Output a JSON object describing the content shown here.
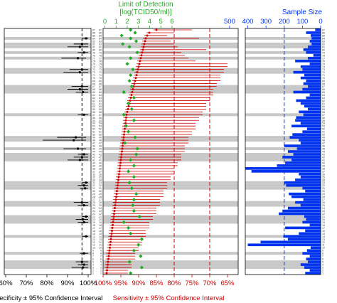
{
  "colors": {
    "sensitivity": "#cc0000",
    "lod": "#22aa22",
    "sample_size": "#0033ee",
    "stripe": "#c8c8c8",
    "frame": "#000000"
  },
  "left_panel": {
    "xlabel": "Specificity ± 95% Confidence Interval",
    "ticks": [
      "60%",
      "70%",
      "80%",
      "90%",
      "100%"
    ]
  },
  "middle_panel": {
    "xlabel": "Sensitivity ± 95% Confidence Interval",
    "ticks": [
      "100%",
      "95%",
      "90%",
      "85%",
      "80%",
      "75%",
      "70%",
      "65%"
    ],
    "top_title_line1": "Limit of Detection",
    "top_title_line2": "[log(TCID50/ml)]",
    "top_ticks": [
      "0",
      "1",
      "2",
      "3",
      "4",
      "5",
      "6"
    ]
  },
  "right_panel": {
    "title": "Sample Size",
    "ticks": [
      "500",
      "400",
      "300",
      "200",
      "100",
      "0"
    ]
  },
  "chart_data": [
    {
      "type": "scatter",
      "panel": "specificity",
      "xlabel": "Specificity ± 95% Confidence Interval",
      "xlim": [
        60,
        100
      ],
      "reference_line": 97,
      "rows": 87,
      "shaded_rows": [
        3,
        4,
        5,
        8,
        14,
        19,
        20,
        21,
        25,
        26,
        31,
        32,
        33,
        41,
        42,
        43,
        45,
        48,
        49,
        57,
        65,
        66,
        67,
        72,
        73,
        77,
        79,
        81,
        82,
        84
      ],
      "points": [
        {
          "row": 3,
          "value": 97.5,
          "low": 92,
          "high": 100
        },
        {
          "row": 4,
          "value": 98,
          "low": 95,
          "high": 100
        },
        {
          "row": 5,
          "value": 97,
          "low": 94,
          "high": 100
        },
        {
          "row": 8,
          "value": 98,
          "low": 96,
          "high": 100
        },
        {
          "row": 14,
          "value": 99,
          "low": 97,
          "high": 100
        },
        {
          "row": 19,
          "value": 98,
          "low": 95,
          "high": 100
        },
        {
          "row": 20,
          "value": 97.5,
          "low": 94,
          "high": 100
        },
        {
          "row": 21,
          "value": 99,
          "low": 97,
          "high": 100
        },
        {
          "row": 25,
          "value": 98,
          "low": 95,
          "high": 100
        },
        {
          "row": 26,
          "value": 97,
          "low": 93,
          "high": 100
        },
        {
          "row": 31,
          "value": 98.5,
          "low": 96,
          "high": 100
        },
        {
          "row": 32,
          "value": 98,
          "low": 95,
          "high": 100
        },
        {
          "row": 33,
          "value": 99,
          "low": 97,
          "high": 100
        },
        {
          "row": 41,
          "value": 96,
          "low": 90,
          "high": 100
        },
        {
          "row": 42,
          "value": 97,
          "low": 93,
          "high": 100
        },
        {
          "row": 43,
          "value": 98,
          "low": 95,
          "high": 100
        },
        {
          "row": 45,
          "value": 95,
          "low": 88,
          "high": 99
        },
        {
          "row": 48,
          "value": 93,
          "low": 78,
          "high": 99
        },
        {
          "row": 49,
          "value": 94,
          "low": 85,
          "high": 99
        },
        {
          "row": 57,
          "value": 98,
          "low": 95,
          "high": 100
        },
        {
          "row": 65,
          "value": 97.5,
          "low": 94,
          "high": 100
        },
        {
          "row": 66,
          "value": 96,
          "low": 90,
          "high": 100
        },
        {
          "row": 67,
          "value": 97,
          "low": 92,
          "high": 100
        },
        {
          "row": 72,
          "value": 96,
          "low": 88,
          "high": 100
        },
        {
          "row": 73,
          "value": 97,
          "low": 91,
          "high": 100
        },
        {
          "row": 77,
          "value": 95,
          "low": 87,
          "high": 99
        },
        {
          "row": 79,
          "value": 98,
          "low": 95,
          "high": 100
        },
        {
          "row": 81,
          "value": 96,
          "low": 90,
          "high": 100
        },
        {
          "row": 82,
          "value": 97,
          "low": 93,
          "high": 100
        },
        {
          "row": 84,
          "value": 99,
          "low": 97,
          "high": 100
        }
      ]
    },
    {
      "type": "scatter",
      "panel": "sensitivity",
      "xlabel": "Sensitivity ± 95% Confidence Interval",
      "xlim": [
        100,
        62
      ],
      "reference_lines": [
        80,
        70
      ],
      "rows": 87,
      "sensitivity": [
        99,
        98.9,
        98.8,
        98.7,
        98.6,
        98.5,
        98.4,
        98.3,
        98.2,
        98.1,
        98,
        97.9,
        97.8,
        97.7,
        97.6,
        97.5,
        97.4,
        97.3,
        97.2,
        97.1,
        97,
        96.9,
        96.8,
        96.7,
        96.6,
        96.5,
        96.4,
        96.3,
        96.2,
        96.1,
        96,
        95.9,
        95.8,
        95.7,
        95.6,
        95.5,
        95.4,
        95.3,
        95.2,
        95.1,
        95,
        94.9,
        94.8,
        94.7,
        94.6,
        94.5,
        94.4,
        94.3,
        94.2,
        94.1,
        94,
        93.9,
        93.8,
        93.7,
        93.6,
        93.5,
        93.4,
        93.2,
        93,
        92.8,
        92.6,
        92.4,
        92.2,
        92,
        91.8,
        91.6,
        91.4,
        91.2,
        91,
        90.8,
        90.6,
        90.4,
        90.2,
        90,
        89.8,
        89.6,
        89.4,
        89.2,
        89,
        88.8,
        88.6,
        88.4,
        88.2,
        88,
        87.6,
        87,
        85
      ],
      "ci_lower": [
        93,
        93,
        92,
        92,
        92,
        91,
        91,
        91,
        90,
        90,
        89,
        89,
        89,
        88,
        88,
        88,
        87,
        87,
        87,
        86,
        86,
        85,
        85,
        85,
        84,
        84,
        84,
        83,
        83,
        83,
        82,
        82,
        82,
        81,
        81,
        80,
        80,
        80,
        79,
        79,
        78,
        78,
        78,
        77,
        77,
        77,
        76,
        76,
        76,
        75,
        75,
        74,
        74,
        74,
        73,
        73,
        72,
        72,
        71,
        71,
        71,
        70,
        70,
        69,
        69,
        69,
        68,
        68,
        67,
        67,
        67,
        66,
        66,
        65,
        65,
        74,
        76,
        77,
        78,
        71,
        79,
        80,
        81,
        73,
        82,
        80,
        75
      ],
      "lod": [
        2.3,
        2.6,
        3.3,
        2.6,
        2.2,
        1.6,
        3.2,
        1.9,
        2.6,
        2.3,
        3,
        1.8,
        3.3,
        2,
        2.3,
        1.6,
        2.1,
        2.7,
        1.7,
        2.4,
        3.1,
        1.9,
        2.6,
        1.6,
        2.5,
        2.1,
        2.6,
        1.8,
        2.8,
        2.3,
        2.4,
        2,
        2.2,
        1.7,
        2.6,
        2.3,
        2.1,
        1.9,
        2.6,
        2.5,
        2.3,
        2.9,
        2.8,
        1.7,
        2.9,
        2.4,
        1.8,
        2.5,
        2.7,
        2,
        2.1,
        2.2,
        1.9,
        2.4,
        2.6,
        2.4,
        1.7,
        2.5,
        2.4,
        2.7,
        2.1,
        1.9,
        2.6,
        2.3,
        1.7,
        2.1,
        2.4,
        2,
        2.2,
        2.6,
        2.3,
        1.8,
        2.5,
        2.4,
        2,
        2.2,
        2.3,
        2.6,
        2.9,
        2.1,
        2.2,
        1.6,
        2.8,
        2.3,
        1.5,
        2.7,
        2.3
      ]
    },
    {
      "type": "bar",
      "panel": "sample_size",
      "title": "Sample Size",
      "xlim": [
        570,
        0
      ],
      "reference_line": 200,
      "rows": 87,
      "values": [
        85,
        60,
        90,
        110,
        70,
        80,
        60,
        100,
        75,
        55,
        400,
        330,
        180,
        205,
        120,
        85,
        195,
        60,
        100,
        80,
        90,
        230,
        210,
        180,
        110,
        140,
        95,
        160,
        175,
        85,
        100,
        190,
        200,
        140,
        110,
        120,
        380,
        540,
        240,
        195,
        160,
        210,
        150,
        180,
        130,
        200,
        110,
        120,
        170,
        155,
        100,
        75,
        160,
        110,
        140,
        135,
        95,
        120,
        70,
        90,
        110,
        135,
        80,
        60,
        150,
        100,
        70,
        95,
        80,
        110,
        90,
        150,
        100,
        110,
        60,
        140,
        70,
        40,
        80,
        95,
        70,
        50,
        60,
        50,
        55,
        80,
        30
      ]
    }
  ]
}
